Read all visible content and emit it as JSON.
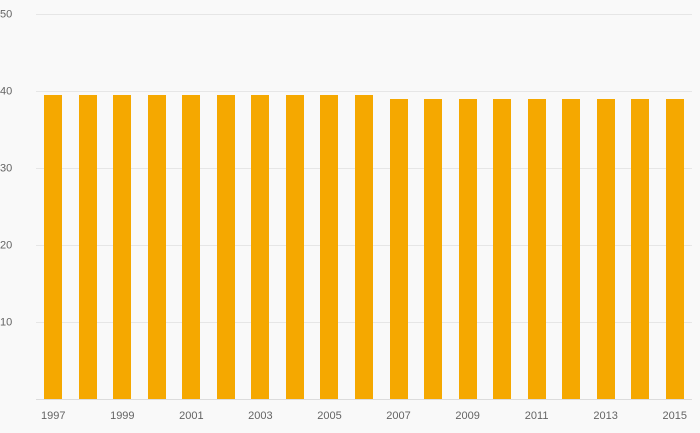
{
  "chart_data": {
    "type": "bar",
    "title": "",
    "xlabel": "",
    "ylabel": "",
    "categories": [
      1997,
      1998,
      1999,
      2000,
      2001,
      2002,
      2003,
      2004,
      2005,
      2006,
      2007,
      2008,
      2009,
      2010,
      2011,
      2012,
      2013,
      2014,
      2015
    ],
    "values": [
      39.5,
      39.5,
      39.5,
      39.5,
      39.5,
      39.5,
      39.5,
      39.5,
      39.5,
      39.5,
      38.9,
      38.9,
      38.9,
      38.9,
      38.9,
      38.9,
      38.9,
      38.9,
      38.9
    ],
    "ylim": [
      0,
      50
    ],
    "yticks": [
      10,
      20,
      30,
      40,
      50
    ],
    "xtick_labels": [
      "1997",
      "1999",
      "2001",
      "2003",
      "2005",
      "2007",
      "2009",
      "2011",
      "2013",
      "2015"
    ],
    "xtick_every": 2,
    "grid": true,
    "legend": "none",
    "bar_color": "#f5a800",
    "background_color": "#f9f9f9",
    "gridline_color": "#e6e6e6",
    "tick_label_color": "#646464"
  }
}
